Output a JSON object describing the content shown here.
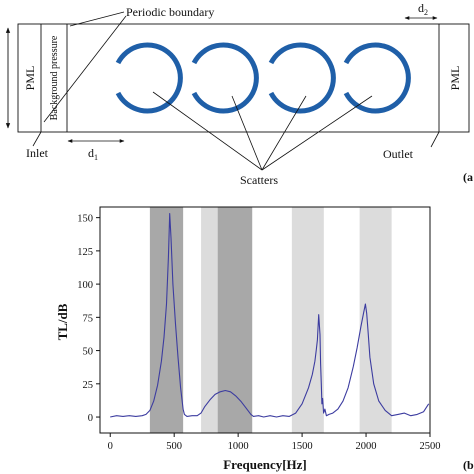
{
  "panel_a": {
    "label": "(a",
    "pml_left": "PML",
    "pml_right": "PML",
    "background_pressure": "Background pressure",
    "periodic_boundary": "Periodic boundary",
    "inlet": "Inlet",
    "outlet": "Outlet",
    "d1_label": "d",
    "d1_sub": "1",
    "d2_label": "d",
    "d2_sub": "2",
    "scatters": "Scatters",
    "scatterer_color": "#1f5fa8",
    "scatterer_count": 4
  },
  "panel_b": {
    "label": "(b",
    "chart_data": {
      "type": "line",
      "title": "",
      "xlabel": "Frequency[Hz]",
      "ylabel": "TL/dB",
      "xlim": [
        -80,
        2500
      ],
      "ylim": [
        -12,
        158
      ],
      "xticks": [
        0,
        500,
        1000,
        1500,
        2000,
        2500
      ],
      "yticks": [
        0,
        25,
        50,
        75,
        100,
        125,
        150
      ],
      "line_color": "#3c3ca0",
      "bands": [
        {
          "from": 310,
          "to": 570,
          "shade": "#a8a8a8"
        },
        {
          "from": 710,
          "to": 840,
          "shade": "#dcdcdc"
        },
        {
          "from": 840,
          "to": 1110,
          "shade": "#a8a8a8"
        },
        {
          "from": 1420,
          "to": 1670,
          "shade": "#dcdcdc"
        },
        {
          "from": 1950,
          "to": 2200,
          "shade": "#dcdcdc"
        }
      ],
      "series": [
        {
          "x": [
            0,
            50,
            100,
            150,
            200,
            250,
            280,
            310,
            340,
            370,
            400,
            420,
            440,
            455,
            465,
            475,
            490,
            510,
            530,
            550,
            570,
            580,
            600,
            640,
            680,
            710,
            740,
            780,
            820,
            860,
            900,
            940,
            980,
            1020,
            1060,
            1100,
            1120,
            1160,
            1200,
            1250,
            1300,
            1350,
            1400,
            1450,
            1500,
            1550,
            1580,
            1600,
            1610,
            1620,
            1630,
            1640,
            1645,
            1650,
            1655,
            1660,
            1668,
            1678,
            1690,
            1710,
            1740,
            1780,
            1820,
            1860,
            1900,
            1930,
            1960,
            1980,
            1995,
            2005,
            2015,
            2030,
            2060,
            2100,
            2150,
            2200,
            2250,
            2300,
            2350,
            2400,
            2450,
            2490
          ],
          "y": [
            0,
            1,
            0.5,
            1,
            0.5,
            1,
            2,
            5,
            12,
            24,
            42,
            60,
            85,
            120,
            153,
            135,
            100,
            70,
            45,
            22,
            6,
            2,
            0.5,
            1,
            1,
            3,
            8,
            13,
            17,
            19,
            20,
            19,
            16,
            12,
            7,
            2,
            0.5,
            1,
            0,
            1,
            0,
            1,
            0.5,
            3,
            10,
            22,
            32,
            42,
            50,
            58,
            77,
            62,
            40,
            25,
            10,
            14,
            3,
            6,
            1,
            2,
            3,
            6,
            12,
            22,
            38,
            52,
            68,
            78,
            85,
            78,
            65,
            45,
            25,
            12,
            5,
            1,
            2,
            3,
            1,
            2,
            4,
            10
          ]
        }
      ]
    }
  }
}
